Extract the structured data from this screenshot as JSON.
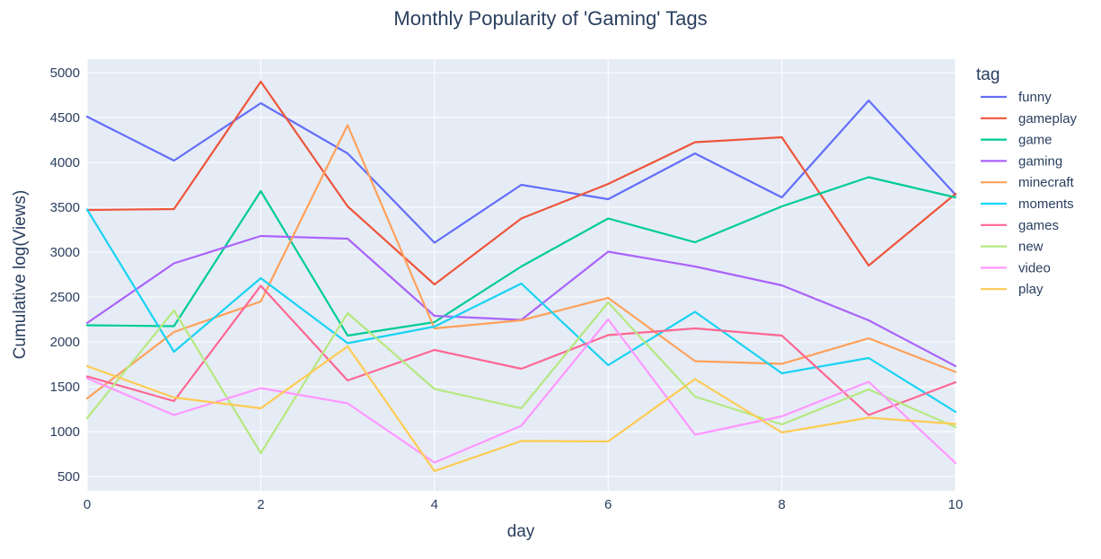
{
  "chart_data": {
    "type": "line",
    "title": "Monthly Popularity of 'Gaming' Tags",
    "xlabel": "day",
    "ylabel": "Cumulative log(Views)",
    "legend_title": "tag",
    "legend_position": "right",
    "grid": true,
    "xlim": [
      0,
      10
    ],
    "ylim": [
      340,
      5150
    ],
    "x_ticks": [
      0,
      2,
      4,
      6,
      8,
      10
    ],
    "y_ticks": [
      500,
      1000,
      1500,
      2000,
      2500,
      3000,
      3500,
      4000,
      4500,
      5000
    ],
    "x": [
      0,
      1,
      2,
      3,
      4,
      5,
      6,
      7,
      8,
      9,
      10
    ],
    "series": [
      {
        "name": "funny",
        "color": "#636efa",
        "values": [
          4510,
          4020,
          4660,
          4100,
          3105,
          3750,
          3590,
          4100,
          3610,
          4690,
          3640
        ]
      },
      {
        "name": "gameplay",
        "color": "#ef553b",
        "values": [
          3470,
          3480,
          4900,
          3510,
          2640,
          3375,
          3760,
          4225,
          4280,
          2850,
          3650
        ]
      },
      {
        "name": "game",
        "color": "#00cc96",
        "values": [
          2185,
          2175,
          3680,
          2070,
          2220,
          2840,
          3375,
          3110,
          3510,
          3835,
          3610
        ]
      },
      {
        "name": "gaming",
        "color": "#ab63fa",
        "values": [
          2210,
          2875,
          3180,
          3150,
          2290,
          2245,
          3005,
          2840,
          2630,
          2240,
          1730
        ]
      },
      {
        "name": "minecraft",
        "color": "#ffa15a",
        "values": [
          1370,
          2110,
          2450,
          4415,
          2150,
          2240,
          2490,
          1785,
          1755,
          2040,
          1665
        ]
      },
      {
        "name": "moments",
        "color": "#19d3f3",
        "values": [
          3475,
          1890,
          2710,
          1985,
          2170,
          2650,
          1740,
          2335,
          1650,
          1820,
          1220
        ]
      },
      {
        "name": "games",
        "color": "#ff6692",
        "values": [
          1615,
          1340,
          2625,
          1570,
          1910,
          1700,
          2075,
          2150,
          2070,
          1185,
          1550
        ]
      },
      {
        "name": "new",
        "color": "#b6e880",
        "values": [
          1150,
          2350,
          760,
          2320,
          1475,
          1260,
          2440,
          1390,
          1080,
          1470,
          1050
        ]
      },
      {
        "name": "video",
        "color": "#ff97ff",
        "values": [
          1595,
          1185,
          1485,
          1315,
          655,
          1065,
          2250,
          965,
          1170,
          1555,
          650
        ]
      },
      {
        "name": "play",
        "color": "#fecb52",
        "values": [
          1730,
          1380,
          1260,
          1950,
          560,
          895,
          890,
          1585,
          990,
          1155,
          1085
        ]
      }
    ]
  }
}
